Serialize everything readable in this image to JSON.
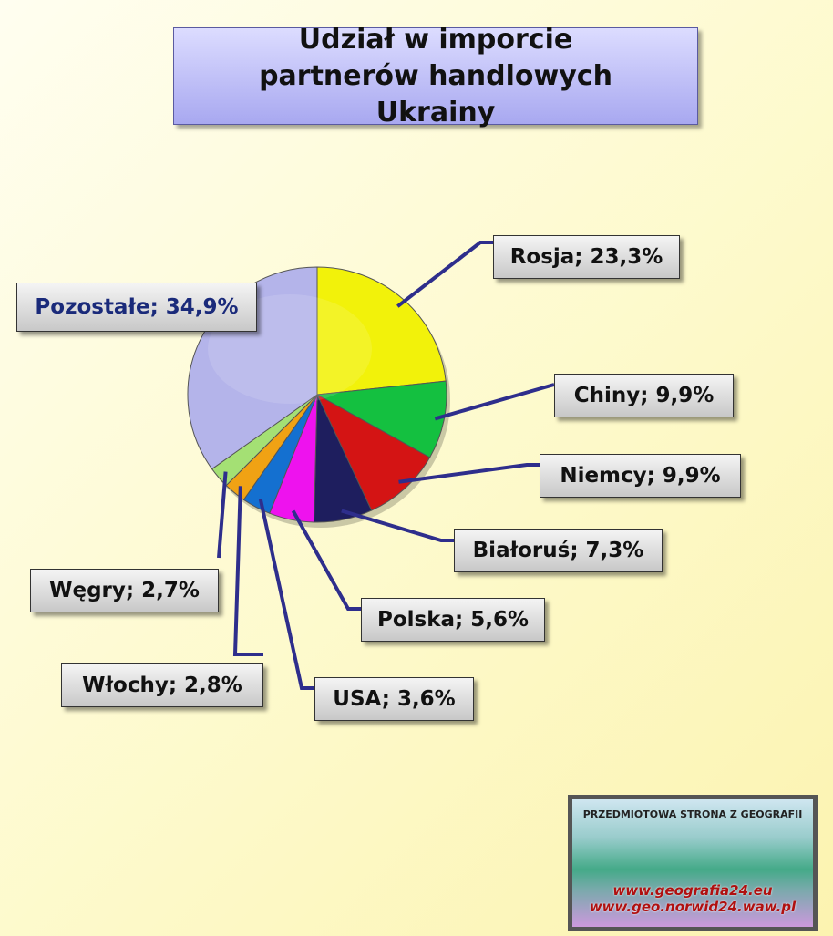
{
  "chart_data": {
    "type": "pie",
    "title": "Udział w imporcie partnerów handlowych Ukrainy",
    "values": [
      23.3,
      9.9,
      9.9,
      7.3,
      5.6,
      3.6,
      2.8,
      2.7,
      34.9
    ],
    "value_labels": [
      "Rosja; 23,3%",
      "Chiny; 9,9%",
      "Niemcy; 9,9%",
      "Białoruś; 7,3%",
      "Polska; 5,6%",
      "USA; 3,6%",
      "Włochy; 2,8%",
      "Węgry; 2,7%",
      "Pozostałe; 34,9%"
    ],
    "colors": [
      "#f2f20a",
      "#14c040",
      "#d41414",
      "#1e1e5e",
      "#ee12ee",
      "#1470d0",
      "#f0a214",
      "#a4e074",
      "#b4b4ea"
    ]
  },
  "logo": {
    "heading": "PRZEDMIOTOWA STRONA Z GEOGRAFII",
    "lines": [
      "www.geografia24.eu",
      "www.geo.norwid24.waw.pl"
    ]
  }
}
